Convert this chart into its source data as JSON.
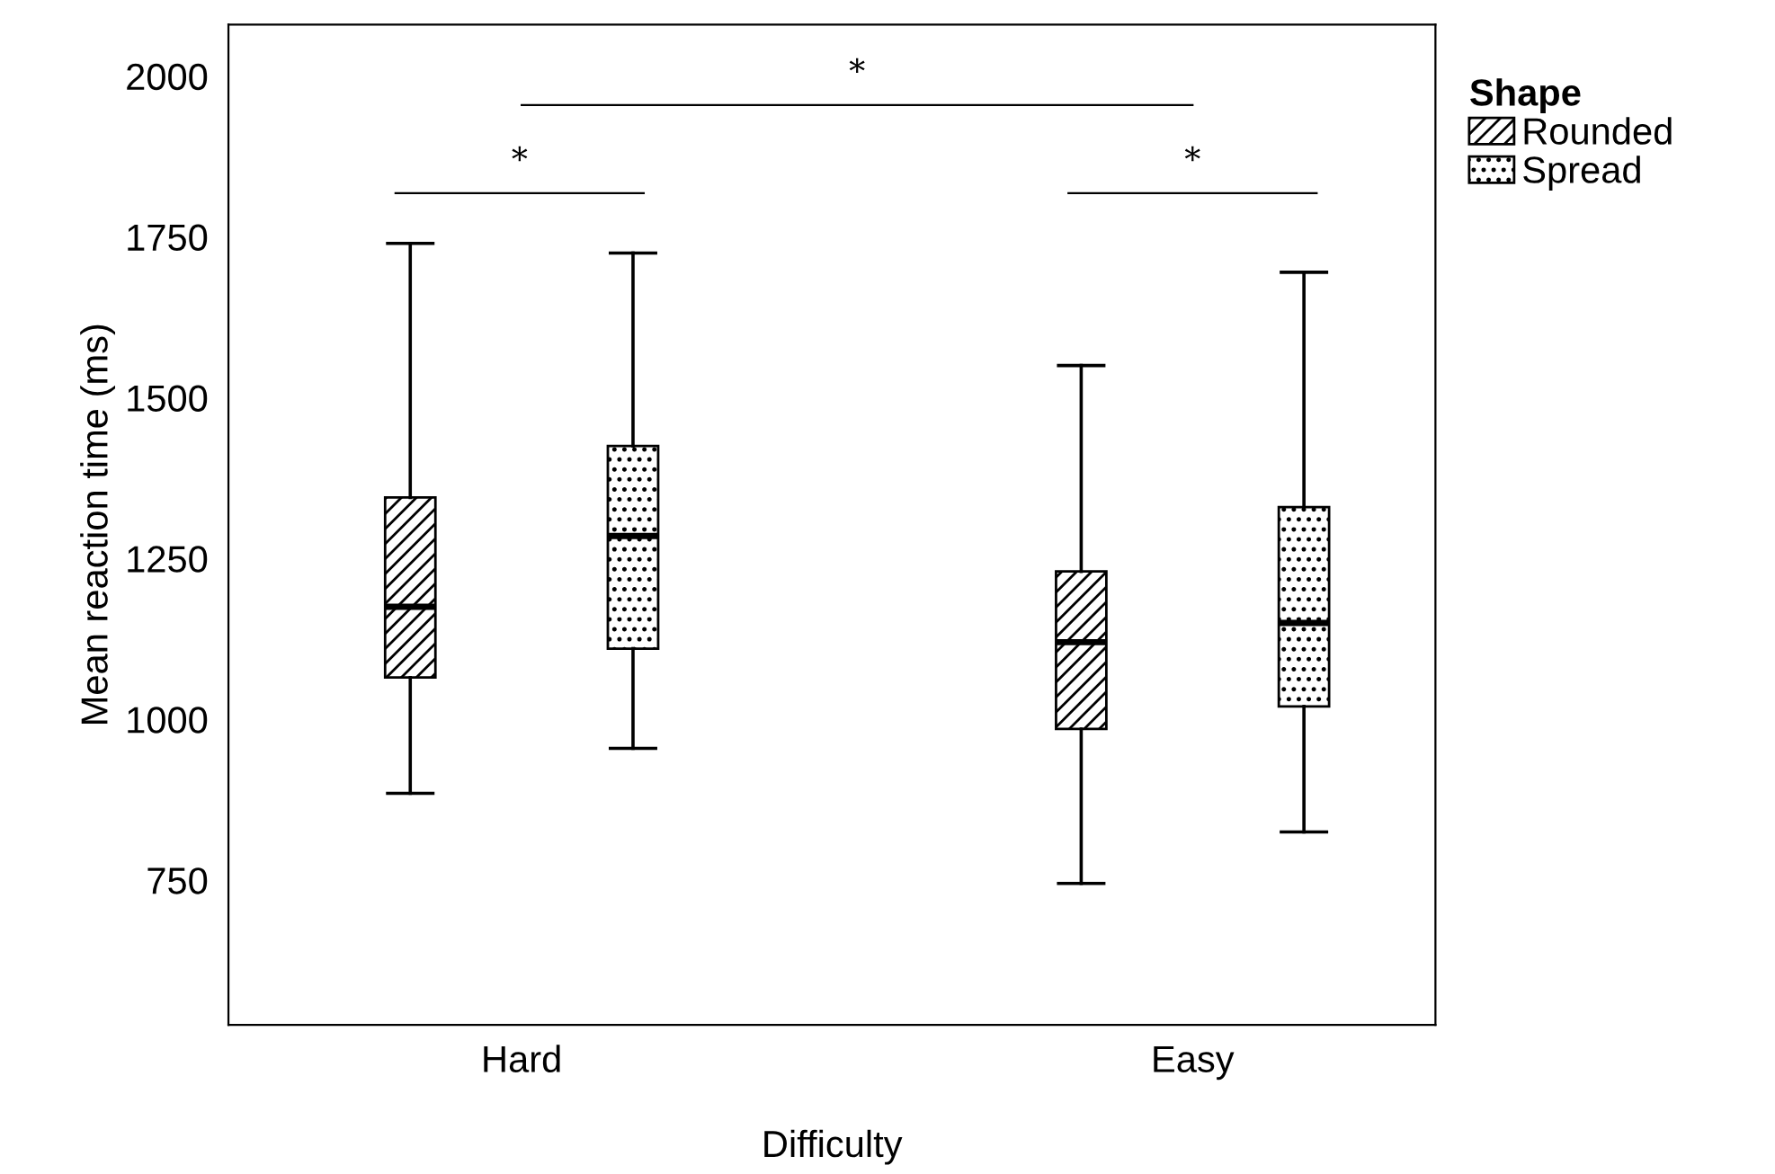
{
  "chart_data": {
    "type": "box",
    "xlabel": "Difficulty",
    "ylabel": "Mean reaction time (ms)",
    "legend_title": "Shape",
    "categories": [
      "Hard",
      "Easy"
    ],
    "series": [
      {
        "name": "Rounded",
        "boxes": [
          {
            "low": 885,
            "q1": 1065,
            "median": 1175,
            "q3": 1345,
            "high": 1740
          },
          {
            "low": 745,
            "q1": 985,
            "median": 1120,
            "q3": 1230,
            "high": 1550
          }
        ]
      },
      {
        "name": "Spread",
        "boxes": [
          {
            "low": 955,
            "q1": 1110,
            "median": 1285,
            "q3": 1425,
            "high": 1725
          },
          {
            "low": 825,
            "q1": 1020,
            "median": 1150,
            "q3": 1330,
            "high": 1695
          }
        ]
      }
    ],
    "ylim": [
      525,
      2080
    ],
    "yticks": [
      750,
      1000,
      1250,
      1500,
      1750,
      2000
    ],
    "grid": false,
    "legend": "top right",
    "annotations": [
      "*",
      "*",
      "*"
    ]
  }
}
